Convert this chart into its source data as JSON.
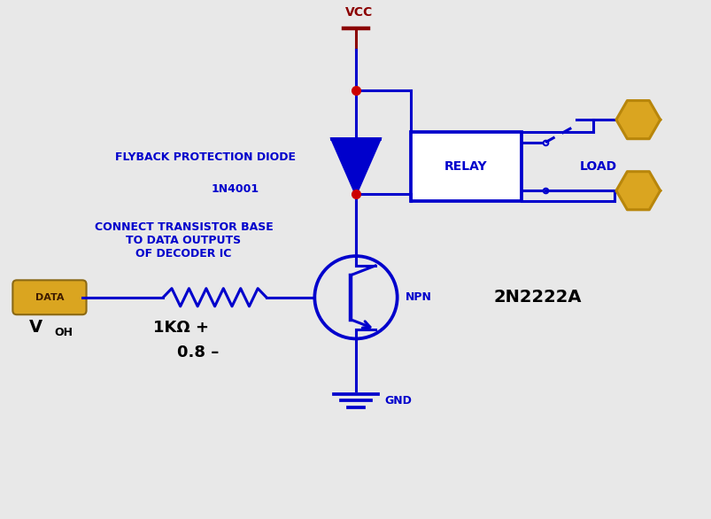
{
  "bg_color": "#e8e8e8",
  "blue": "#0000cc",
  "dark_red": "#8b0000",
  "dark_blue": "#000080",
  "gold": "#DAA520",
  "gold_fill": "#FFD700",
  "black": "#000000",
  "white": "#ffffff",
  "figsize": [
    8.04,
    5.86
  ],
  "dpi": 100,
  "vcc_label": "VCC",
  "gnd_label": "GND",
  "relay_label": "RELAY",
  "load_label": "LOAD",
  "npn_label": "NPN",
  "transistor_label": "2N2222A",
  "diode_label": "1N4001",
  "data_label": "DATA",
  "flyback_label": "FLYBACK PROTECTION DIODE",
  "connect_label": "CONNECT TRANSISTOR BASE\nTO DATA OUTPUTS\nOF DECODER IC",
  "resistor_label": "1KΩ",
  "voh_label": "V",
  "voh_sub": "OH",
  "voltage_label": "0.8"
}
